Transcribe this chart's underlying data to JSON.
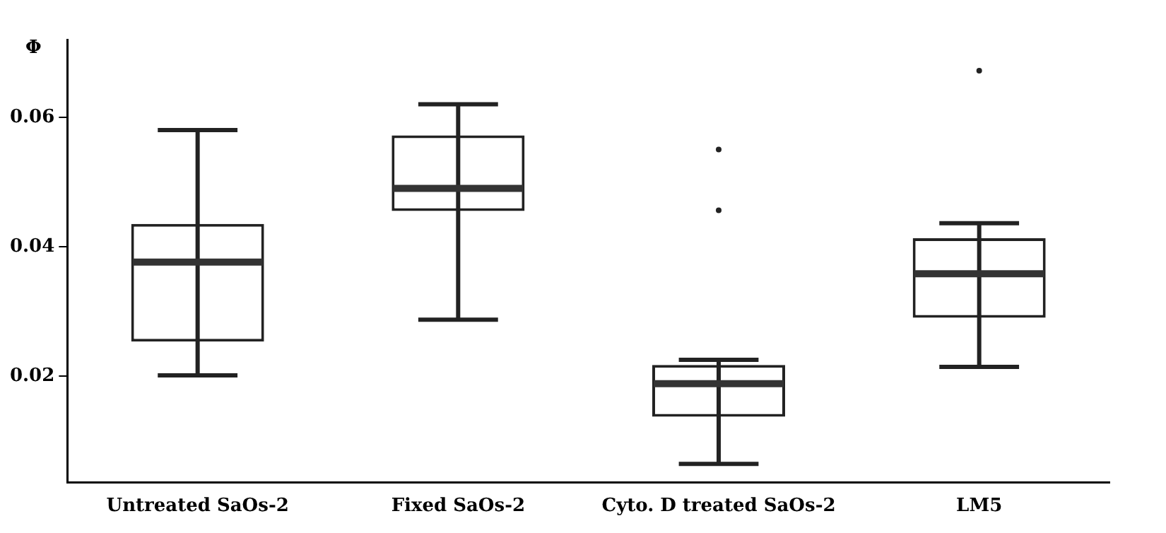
{
  "chart_data": {
    "type": "box",
    "ylabel": "Φ",
    "categories": [
      "Untreated SaOs-2",
      "Fixed SaOs-2",
      "Cyto. D treated SaOs-2",
      "LM5"
    ],
    "boxes": [
      {
        "low": 0.0201,
        "q1": 0.0253,
        "median": 0.0376,
        "q3": 0.0435,
        "high": 0.058
      },
      {
        "low": 0.0287,
        "q1": 0.0455,
        "median": 0.049,
        "q3": 0.0572,
        "high": 0.062
      },
      {
        "low": 0.0064,
        "q1": 0.0137,
        "median": 0.0188,
        "q3": 0.0217,
        "high": 0.0225,
        "outliers": [
          0.055,
          0.0456
        ]
      },
      {
        "low": 0.0214,
        "q1": 0.029,
        "median": 0.0358,
        "q3": 0.0413,
        "high": 0.0436,
        "outliers": [
          0.0672
        ]
      }
    ],
    "color": "#222222",
    "ylim": [
      0.0035,
      0.072
    ],
    "yticks": [
      0.02,
      0.04,
      0.06
    ],
    "grid": false,
    "legend": false
  }
}
